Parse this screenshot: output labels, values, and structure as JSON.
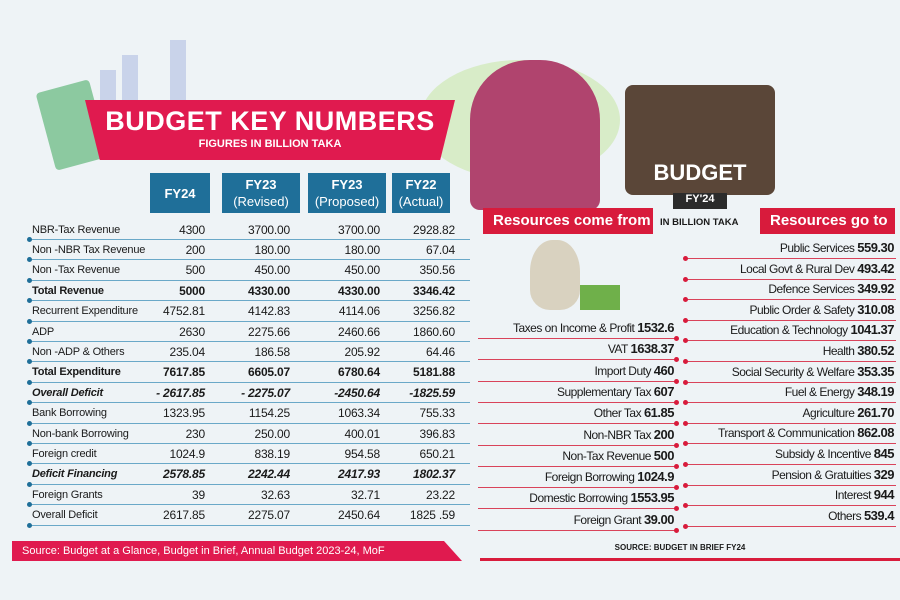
{
  "left": {
    "title": "BUDGET KEY NUMBERS",
    "subtitle": "FIGURES IN BILLION TAKA",
    "headers": [
      {
        "l1": "FY24",
        "l2": ""
      },
      {
        "l1": "FY23",
        "l2": "(Revised)"
      },
      {
        "l1": "FY23",
        "l2": "(Proposed)"
      },
      {
        "l1": "FY22",
        "l2": "(Actual)"
      }
    ],
    "rows": [
      {
        "label": "NBR-Tax Revenue",
        "style": "",
        "values": [
          "4300",
          "3700.00",
          "3700.00",
          "2928.82"
        ]
      },
      {
        "label": "Non -NBR Tax Revenue",
        "style": "",
        "values": [
          "200",
          "180.00",
          "180.00",
          "67.04"
        ]
      },
      {
        "label": "Non -Tax Revenue",
        "style": "",
        "values": [
          "500",
          "450.00",
          "450.00",
          "350.56"
        ]
      },
      {
        "label": "Total Revenue",
        "style": "b",
        "values": [
          "5000",
          "4330.00",
          "4330.00",
          "3346.42"
        ]
      },
      {
        "label": "Recurrent  Expenditure",
        "style": "",
        "values": [
          "4752.81",
          "4142.83",
          "4114.06",
          "3256.82"
        ]
      },
      {
        "label": "ADP",
        "style": "",
        "values": [
          "2630",
          "2275.66",
          "2460.66",
          "1860.60"
        ]
      },
      {
        "label": "Non -ADP & Others",
        "style": "",
        "values": [
          "235.04",
          "186.58",
          "205.92",
          "64.46"
        ]
      },
      {
        "label": "Total Expenditure",
        "style": "b",
        "values": [
          "7617.85",
          "6605.07",
          "6780.64",
          "5181.88"
        ]
      },
      {
        "label": "Overall Deficit",
        "style": "i",
        "values": [
          "- 2617.85",
          "- 2275.07",
          "-2450.64",
          "-1825.59"
        ]
      },
      {
        "label": "Bank Borrowing",
        "style": "",
        "values": [
          "1323.95",
          "1154.25",
          "1063.34",
          "755.33"
        ]
      },
      {
        "label": "Non-bank Borrowing",
        "style": "",
        "values": [
          "230",
          "250.00",
          "400.01",
          "396.83"
        ]
      },
      {
        "label": "Foreign credit",
        "style": "",
        "values": [
          "1024.9",
          "838.19",
          "954.58",
          "650.21"
        ]
      },
      {
        "label": "Deficit Financing",
        "style": "i",
        "values": [
          "2578.85",
          "2242.44",
          "2417.93",
          "1802.37"
        ]
      },
      {
        "label": "Foreign Grants",
        "style": "",
        "values": [
          "39",
          "32.63",
          "32.71",
          "23.22"
        ]
      },
      {
        "label": "Overall Deficit",
        "style": "",
        "values": [
          "2617.85",
          "2275.07",
          "2450.64",
          "1825 .59"
        ]
      }
    ],
    "source": "Source: Budget at a Glance, Budget in Brief, Annual Budget 2023-24, MoF"
  },
  "right": {
    "case_label": "BUDGET",
    "fy": "FY'24",
    "come_title": "Resources come from",
    "go_title": "Resources go to",
    "unit": "IN BILLION TAKA",
    "come": [
      {
        "l": "Taxes on Income & Profit",
        "v": "1532.6"
      },
      {
        "l": "VAT",
        "v": "1638.37"
      },
      {
        "l": "Import Duty",
        "v": "460"
      },
      {
        "l": "Supplementary Tax",
        "v": "607"
      },
      {
        "l": "Other Tax",
        "v": "61.85"
      },
      {
        "l": "Non-NBR Tax",
        "v": "200"
      },
      {
        "l": "Non-Tax Revenue",
        "v": "500"
      },
      {
        "l": "Foreign Borrowing",
        "v": "1024.9"
      },
      {
        "l": "Domestic Borrowing",
        "v": "1553.95"
      },
      {
        "l": "Foreign Grant",
        "v": "39.00"
      }
    ],
    "go": [
      {
        "l": "Public Services",
        "v": "559.30"
      },
      {
        "l": "Local Govt & Rural Dev",
        "v": "493.42"
      },
      {
        "l": "Defence Services",
        "v": "349.92"
      },
      {
        "l": "Public Order & Safety",
        "v": "310.08"
      },
      {
        "l": "Education & Technology",
        "v": "1041.37"
      },
      {
        "l": "Health",
        "v": "380.52"
      },
      {
        "l": "Social Security & Welfare",
        "v": "353.35"
      },
      {
        "l": "Fuel & Energy",
        "v": "348.19"
      },
      {
        "l": "Agriculture",
        "v": "261.70"
      },
      {
        "l": "Transport & Communication",
        "v": "862.08"
      },
      {
        "l": "Subsidy & Incentive",
        "v": "845"
      },
      {
        "l": "Pension & Gratuities",
        "v": "329"
      },
      {
        "l": "Interest",
        "v": "944"
      },
      {
        "l": "Others",
        "v": "539.4"
      }
    ],
    "source": "SOURCE: BUDGET IN BRIEF FY24"
  },
  "colors": {
    "red": "#e01a4f",
    "blue": "#1f6f99"
  }
}
